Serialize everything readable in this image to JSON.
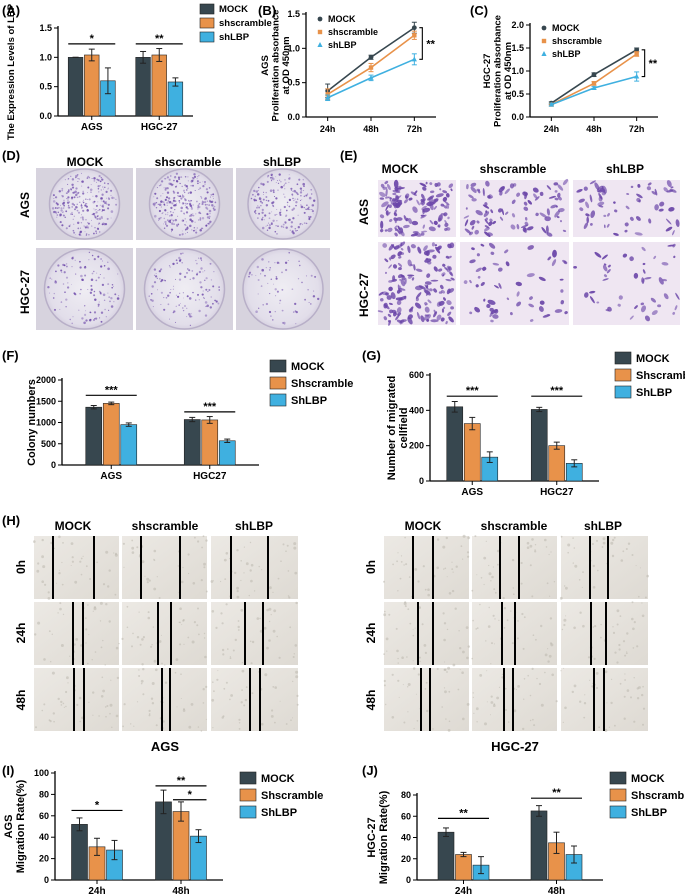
{
  "colors": {
    "mock": "#37474f",
    "shscramble": "#e8924a",
    "shlbp": "#3fb0e0",
    "dish": "#e9e6ef",
    "stain": "#6a45a8",
    "field_pink": "#efe6f2",
    "scratch_bg": "#e7e4df"
  },
  "panels": {
    "A": "(A)",
    "B": "(B)",
    "C": "(C)",
    "D": "(D)",
    "E": "(E)",
    "F": "(F)",
    "G": "(G)",
    "H": "(H)",
    "I": "(I)",
    "J": "(J)"
  },
  "images": {
    "D": {
      "cols": [
        "MOCK",
        "shscramble",
        "shLBP"
      ],
      "rows": [
        "AGS",
        "HGC-27"
      ]
    },
    "E": {
      "cols": [
        "MOCK",
        "shscramble",
        "shLBP"
      ],
      "rows": [
        "AGS",
        "HGC-27"
      ]
    },
    "H": {
      "left": {
        "cols": [
          "MOCK",
          "shscramble",
          "shLBP"
        ],
        "rows": [
          "0h",
          "24h",
          "48h"
        ],
        "caption": "AGS"
      },
      "right": {
        "cols": [
          "MOCK",
          "shscramble",
          "shLBP"
        ],
        "rows": [
          "0h",
          "24h",
          "48h"
        ],
        "caption": "HGC-27"
      }
    }
  },
  "chart_data": [
    {
      "id": "A",
      "type": "bar",
      "ylabel": "The Expression Levels of LBP",
      "categories": [
        "AGS",
        "HGC-27"
      ],
      "ylim": [
        0,
        1.5
      ],
      "yticks": [
        "0.0",
        "0.5",
        "1.0",
        "1.5"
      ],
      "ytick_values": [
        0,
        0.5,
        1.0,
        1.5
      ],
      "legend": [
        "MOCK",
        "shscramble",
        "shLBP"
      ],
      "series": [
        {
          "name": "MOCK",
          "values": [
            1.0,
            1.0
          ],
          "err": [
            0.0,
            0.1
          ]
        },
        {
          "name": "shscramble",
          "values": [
            1.04,
            1.04
          ],
          "err": [
            0.1,
            0.11
          ]
        },
        {
          "name": "shLBP",
          "values": [
            0.6,
            0.58
          ],
          "err": [
            0.22,
            0.07
          ]
        }
      ],
      "sig": [
        {
          "group": 0,
          "from": 0,
          "to": 2,
          "y": 1.23,
          "label": "*"
        },
        {
          "group": 1,
          "from": 0,
          "to": 2,
          "y": 1.23,
          "label": "**"
        }
      ]
    },
    {
      "id": "B",
      "type": "line",
      "ylabel": "AGS\nProliferation absorbance\nat OD 450nm",
      "x": [
        "24h",
        "48h",
        "72h"
      ],
      "ylim": [
        0,
        1.5
      ],
      "yticks": [
        "0.0",
        "0.5",
        "1.0",
        "1.5"
      ],
      "ytick_values": [
        0,
        0.5,
        1.0,
        1.5
      ],
      "legend": [
        "MOCK",
        "shscramble",
        "shLBP"
      ],
      "series": [
        {
          "name": "MOCK",
          "values": [
            0.38,
            0.87,
            1.3
          ],
          "err": [
            0.1,
            0.03,
            0.08
          ]
        },
        {
          "name": "shscramble",
          "values": [
            0.33,
            0.72,
            1.19
          ],
          "err": [
            0.08,
            0.06,
            0.06
          ]
        },
        {
          "name": "shLBP",
          "values": [
            0.28,
            0.57,
            0.84
          ],
          "err": [
            0.04,
            0.04,
            0.08
          ]
        }
      ],
      "sig_label": "**"
    },
    {
      "id": "C",
      "type": "line",
      "ylabel": "HGC-27\nProliferation absorbance\nat OD 450nm",
      "x": [
        "24h",
        "48h",
        "72h"
      ],
      "ylim": [
        0,
        2.0
      ],
      "yticks": [
        "0.0",
        "0.5",
        "1.0",
        "1.5",
        "2.0"
      ],
      "ytick_values": [
        0,
        0.5,
        1.0,
        1.5,
        2.0
      ],
      "legend": [
        "MOCK",
        "shscramble",
        "shLBP"
      ],
      "series": [
        {
          "name": "MOCK",
          "values": [
            0.3,
            0.92,
            1.46
          ],
          "err": [
            0.03,
            0.04,
            0.04
          ]
        },
        {
          "name": "shscramble",
          "values": [
            0.27,
            0.73,
            1.37
          ],
          "err": [
            0.03,
            0.04,
            0.05
          ]
        },
        {
          "name": "shLBP",
          "values": [
            0.27,
            0.63,
            0.88
          ],
          "err": [
            0.03,
            0.03,
            0.1
          ]
        }
      ],
      "sig_label": "**"
    },
    {
      "id": "F",
      "type": "bar",
      "ylabel": "Colony numbers",
      "categories": [
        "AGS",
        "HGC27"
      ],
      "ylim": [
        0,
        2000
      ],
      "yticks": [
        "0",
        "500",
        "1000",
        "1500",
        "2000"
      ],
      "ytick_values": [
        0,
        500,
        1000,
        1500,
        2000
      ],
      "legend": [
        "MOCK",
        "Shscramble",
        "ShLBP"
      ],
      "series": [
        {
          "name": "MOCK",
          "values": [
            1360,
            1070
          ],
          "err": [
            40,
            50
          ]
        },
        {
          "name": "Shscramble",
          "values": [
            1450,
            1060
          ],
          "err": [
            30,
            80
          ]
        },
        {
          "name": "ShLBP",
          "values": [
            950,
            570
          ],
          "err": [
            40,
            40
          ]
        }
      ],
      "sig": [
        {
          "group": 0,
          "from": 0,
          "to": 2,
          "y": 1640,
          "label": "***"
        },
        {
          "group": 1,
          "from": 0,
          "to": 2,
          "y": 1250,
          "label": "***"
        }
      ]
    },
    {
      "id": "G",
      "type": "bar",
      "ylabel": "Number of migrated\ncellfield",
      "categories": [
        "AGS",
        "HGC27"
      ],
      "ylim": [
        0,
        600
      ],
      "yticks": [
        "0",
        "200",
        "400",
        "600"
      ],
      "ytick_values": [
        0,
        200,
        400,
        600
      ],
      "legend": [
        "MOCK",
        "Shscramble",
        "ShLBP"
      ],
      "series": [
        {
          "name": "MOCK",
          "values": [
            420,
            405
          ],
          "err": [
            30,
            12
          ]
        },
        {
          "name": "Shscramble",
          "values": [
            325,
            200
          ],
          "err": [
            35,
            20
          ]
        },
        {
          "name": "ShLBP",
          "values": [
            135,
            100
          ],
          "err": [
            30,
            20
          ]
        }
      ],
      "sig": [
        {
          "group": 0,
          "from": 0,
          "to": 2,
          "y": 480,
          "label": "***"
        },
        {
          "group": 1,
          "from": 0,
          "to": 2,
          "y": 480,
          "label": "***"
        }
      ]
    },
    {
      "id": "I",
      "type": "bar",
      "ylabel": "AGS\nMigration Rate(%)",
      "categories": [
        "24h",
        "48h"
      ],
      "ylim": [
        0,
        100
      ],
      "yticks": [
        "0",
        "20",
        "40",
        "60",
        "80",
        "100"
      ],
      "ytick_values": [
        0,
        20,
        40,
        60,
        80,
        100
      ],
      "legend": [
        "MOCK",
        "Shscramble",
        "ShLBP"
      ],
      "series": [
        {
          "name": "MOCK",
          "values": [
            52,
            73
          ],
          "err": [
            6,
            11
          ]
        },
        {
          "name": "Shscramble",
          "values": [
            31,
            64
          ],
          "err": [
            8,
            9
          ]
        },
        {
          "name": "ShLBP",
          "values": [
            28,
            41
          ],
          "err": [
            9,
            6
          ]
        }
      ],
      "sig": [
        {
          "group": 0,
          "from": 0,
          "to": 2,
          "y": 65,
          "label": "*"
        },
        {
          "group": 1,
          "from": 0,
          "to": 2,
          "y": 88,
          "label": "**"
        },
        {
          "group": 1,
          "from": 1,
          "to": 2,
          "y": 75,
          "label": "*"
        }
      ]
    },
    {
      "id": "J",
      "type": "bar",
      "ylabel": "HGC-27\nMigration Rate(%)",
      "categories": [
        "24h",
        "48h"
      ],
      "ylim": [
        0,
        80
      ],
      "yticks": [
        "0",
        "20",
        "40",
        "60",
        "80"
      ],
      "ytick_values": [
        0,
        20,
        40,
        60,
        80
      ],
      "legend": [
        "MOCK",
        "Shscramble",
        "ShLBP"
      ],
      "series": [
        {
          "name": "MOCK",
          "values": [
            45,
            65
          ],
          "err": [
            4,
            5
          ]
        },
        {
          "name": "Shscramble",
          "values": [
            24,
            35
          ],
          "err": [
            2,
            10
          ]
        },
        {
          "name": "ShLBP",
          "values": [
            14,
            24
          ],
          "err": [
            8,
            8
          ]
        }
      ],
      "sig": [
        {
          "group": 0,
          "from": 0,
          "to": 2,
          "y": 58,
          "label": "**"
        },
        {
          "group": 1,
          "from": 0,
          "to": 2,
          "y": 77,
          "label": "**"
        }
      ]
    }
  ]
}
